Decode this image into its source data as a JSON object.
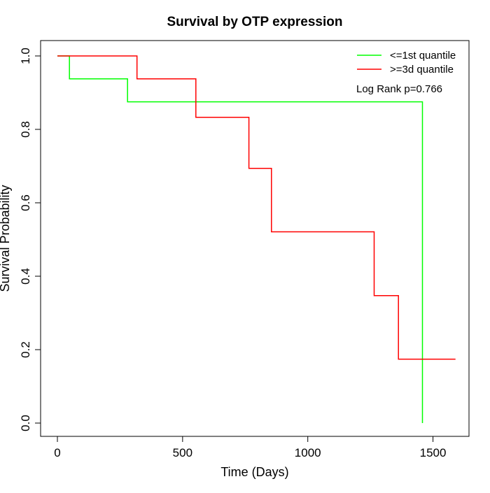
{
  "chart_data": {
    "type": "line",
    "subtype": "kaplan-meier",
    "title": "Survival by OTP expression",
    "xlabel": "Time (Days)",
    "ylabel": "Survival Probability",
    "xlim": [
      0,
      1600
    ],
    "ylim": [
      0,
      1
    ],
    "x_ticks": [
      0,
      500,
      1000,
      1500
    ],
    "y_ticks": [
      0.0,
      0.2,
      0.4,
      0.6,
      0.8,
      1.0
    ],
    "x_tick_labels": [
      "0",
      "500",
      "1000",
      "1500"
    ],
    "y_tick_labels": [
      "0.0",
      "0.2",
      "0.4",
      "0.6",
      "0.8",
      "1.0"
    ],
    "grid": false,
    "legend_position": "top-right",
    "annotation": "Log Rank p=0.766",
    "series": [
      {
        "name": "<=1st quantile",
        "color": "#00ff00",
        "x": [
          0,
          48,
          48,
          280,
          280,
          1458,
          1458
        ],
        "y": [
          1.0,
          1.0,
          0.9375,
          0.9375,
          0.875,
          0.875,
          0.0
        ]
      },
      {
        "name": ">=3d quantile",
        "color": "#ff0000",
        "x": [
          0,
          318,
          318,
          553,
          553,
          765,
          765,
          855,
          855,
          1265,
          1265,
          1362,
          1362,
          1590
        ],
        "y": [
          1.0,
          1.0,
          0.9375,
          0.9375,
          0.833,
          0.833,
          0.694,
          0.694,
          0.521,
          0.521,
          0.347,
          0.347,
          0.174,
          0.174
        ]
      }
    ]
  }
}
